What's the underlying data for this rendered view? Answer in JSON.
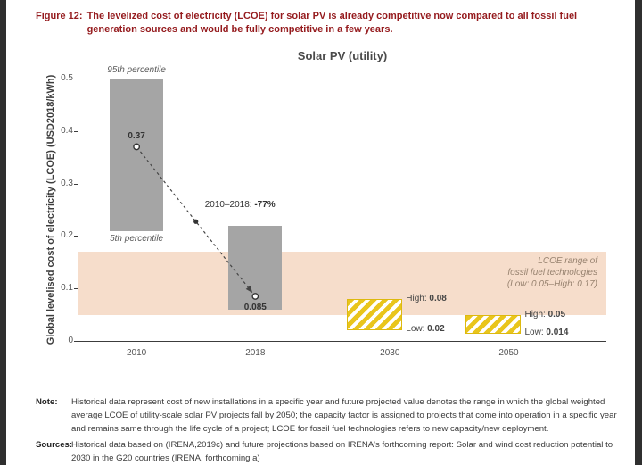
{
  "figure": {
    "caption_label": "Figure 12:",
    "caption_text": "The levelized cost of electricity (LCOE) for solar PV is already competitive now compared to all fossil fuel generation sources and would be fully competitive in a few years."
  },
  "chart_data": {
    "type": "bar",
    "title": "Solar PV (utility)",
    "ylabel": "Global levelised cost of electricity (LCOE)  (USD2018/kWh)",
    "ylim": [
      0,
      0.5
    ],
    "yticks": [
      0,
      0.1,
      0.2,
      0.3,
      0.4,
      0.5
    ],
    "categories": [
      "2010",
      "2018",
      "2030",
      "2050"
    ],
    "historical_bars": [
      {
        "category": "2010",
        "range_low": 0.21,
        "range_high": 0.5,
        "range_high_label": "95th percentile",
        "range_low_label": "5th percentile",
        "point": 0.37,
        "point_label": "0.37",
        "point_label_pos": "above"
      },
      {
        "category": "2018",
        "range_low": 0.06,
        "range_high": 0.22,
        "point": 0.085,
        "point_label": "0.085",
        "point_label_pos": "below"
      }
    ],
    "projection_ranges": [
      {
        "category": "2030",
        "high": 0.08,
        "low": 0.02,
        "high_label": "High:",
        "high_value": "0.08",
        "low_label": "Low:",
        "low_value": "0.02"
      },
      {
        "category": "2050",
        "high": 0.05,
        "low": 0.014,
        "high_label": "High:",
        "high_value": "0.05",
        "low_label": "Low:",
        "low_value": "0.014"
      }
    ],
    "trend_annotation": {
      "prefix": "2010–2018: ",
      "value": "-77%",
      "from_category": "2010",
      "from_value": 0.37,
      "to_category": "2018",
      "to_value": 0.085
    },
    "fossil_band": {
      "low": 0.05,
      "high": 0.17,
      "label_lines": [
        "LCOE range of",
        "fossil fuel technologies",
        "(Low: 0.05–High: 0.17)"
      ]
    }
  },
  "notes": {
    "note_label": "Note:",
    "note_text": "Historical data represent cost of new installations in a specific year and future projected value denotes the range in which the global weighted average LCOE of utility-scale solar PV projects fall by 2050; the capacity factor is assigned to projects that come into operation in a specific year and remains same through the life cycle of a project; LCOE for fossil fuel technologies refers to new capacity/new deployment.",
    "sources_label": "Sources:",
    "sources_text": "Historical data based on (IRENA,2019c) and future projections based on IRENA's forthcoming report: Solar and wind cost reduction potential to 2030 in the G20 countries (IRENA, forthcoming a)"
  },
  "colors": {
    "caption_red": "#951b1e",
    "bar_gray": "#a5a5a5",
    "band_fill": "#f6ddcb",
    "band_text": "#97826f",
    "hatch_yellow": "#e9c51c",
    "axis_line": "#3c3c3c",
    "axis_text": "#555555",
    "dark_text": "#333333"
  }
}
